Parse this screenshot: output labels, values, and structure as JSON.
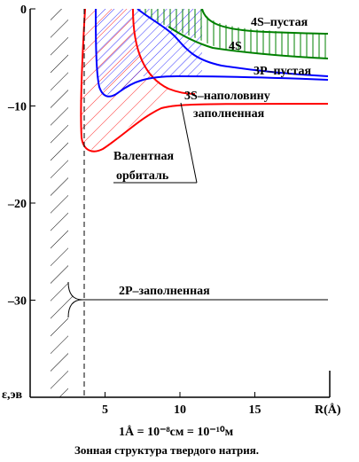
{
  "chart_data": {
    "type": "diagram",
    "title": "Зонная структура твердого натрия.",
    "formula": "1Å = 10⁻⁸см = 10⁻¹⁰м",
    "xlabel": "R(Å)",
    "ylabel": "ε,эв",
    "xlim": [
      0,
      20
    ],
    "ylim": [
      -40,
      0
    ],
    "x_ticks": [
      5,
      10,
      15
    ],
    "y_ticks": [
      0,
      -10,
      -20,
      -30
    ],
    "x_tick_labels": [
      "5",
      "10",
      "15"
    ],
    "y_tick_labels": [
      "0",
      "–10",
      "–20",
      "–30"
    ],
    "equilibrium_distance": 3.7,
    "levels": [
      {
        "label": "4S–пустая",
        "energy_asymptote": -3.0,
        "color": "#008000"
      },
      {
        "label": "4S",
        "energy_asymptote": -5.0,
        "color": "#008000"
      },
      {
        "label": "3P–пустая",
        "energy_asymptote": -7.3,
        "color": "#0000ff"
      },
      {
        "label": "3S–наполовину заполненная",
        "energy_asymptote": -10.0,
        "color": "#ff0000"
      },
      {
        "label": "2P–заполненная",
        "energy_asymptote": -30.0,
        "color": "#000000"
      }
    ],
    "annotation": "Валентная орбиталь"
  },
  "colors": {
    "red": "#ff0000",
    "blue": "#0000ff",
    "green": "#008000",
    "black": "#000000"
  }
}
